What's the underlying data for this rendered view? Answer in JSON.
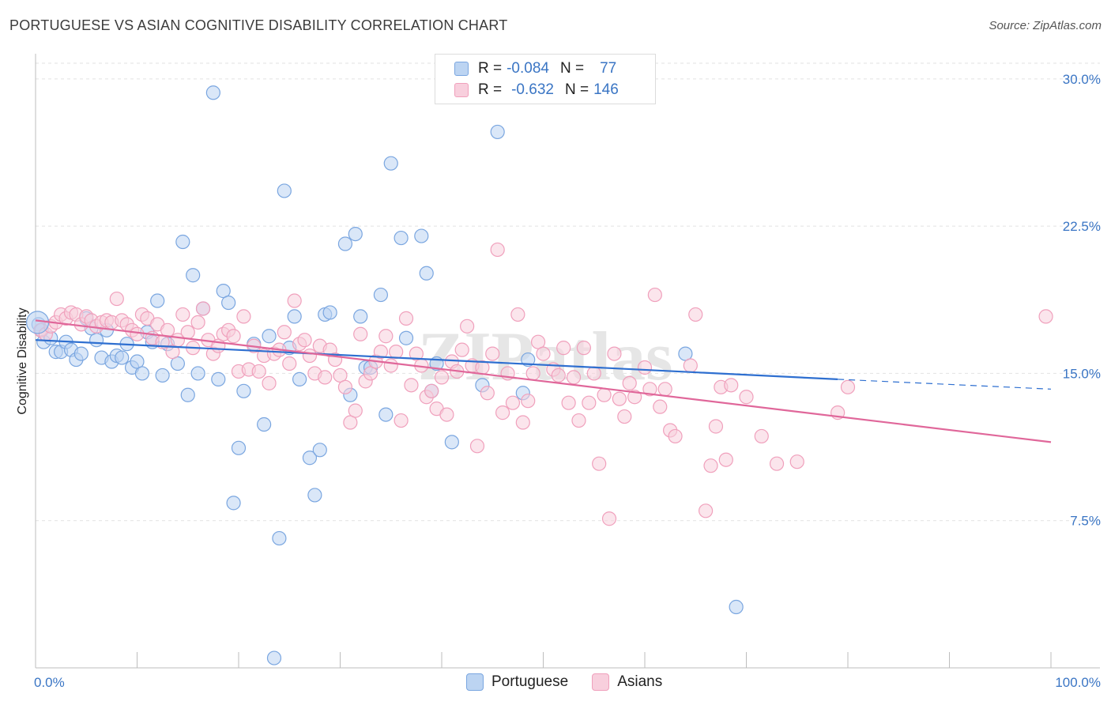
{
  "title": "PORTUGUESE VS ASIAN COGNITIVE DISABILITY CORRELATION CHART",
  "source": "Source: ZipAtlas.com",
  "watermark": "ZIPatlas",
  "chart_data": {
    "type": "scatter",
    "ylabel": "Cognitive Disability",
    "xlabel": "",
    "xlim": [
      0,
      100
    ],
    "ylim": [
      0,
      30.8
    ],
    "x_tick_labels": [
      "0.0%",
      "100.0%"
    ],
    "y_ticks": [
      {
        "value": 7.5,
        "label": "7.5%"
      },
      {
        "value": 15.0,
        "label": "15.0%"
      },
      {
        "value": 22.5,
        "label": "22.5%"
      },
      {
        "value": 30.0,
        "label": "30.0%"
      }
    ],
    "grid": true,
    "legend_position": "top-center",
    "series": [
      {
        "name": "Portuguese",
        "color": "#7aa6e0",
        "fill": "#bcd4f2",
        "line_color": "#2e6fd0",
        "R": "-0.084",
        "N": "77",
        "trend": {
          "x0": 0,
          "y0": 16.7,
          "x1": 79,
          "y1": 14.7,
          "dash_to": 100,
          "dash_y": 14.2
        },
        "points": [
          [
            0.3,
            17.5
          ],
          [
            0.6,
            17.2
          ],
          [
            0.8,
            16.6
          ],
          [
            1.5,
            16.8
          ],
          [
            2,
            16.1
          ],
          [
            2.5,
            16.1
          ],
          [
            3,
            16.6
          ],
          [
            3.5,
            16.2
          ],
          [
            4,
            15.7
          ],
          [
            4.5,
            16.0
          ],
          [
            5,
            17.8
          ],
          [
            5.5,
            17.3
          ],
          [
            6,
            16.7
          ],
          [
            6.5,
            15.8
          ],
          [
            7,
            17.2
          ],
          [
            7.5,
            15.6
          ],
          [
            8,
            15.9
          ],
          [
            8.5,
            15.8
          ],
          [
            9,
            16.5
          ],
          [
            9.5,
            15.3
          ],
          [
            10,
            15.6
          ],
          [
            10.5,
            15.0
          ],
          [
            11,
            17.1
          ],
          [
            11.5,
            16.6
          ],
          [
            12,
            18.7
          ],
          [
            12.5,
            14.9
          ],
          [
            13,
            16.5
          ],
          [
            14,
            15.5
          ],
          [
            14.5,
            21.7
          ],
          [
            15,
            13.9
          ],
          [
            15.5,
            20.0
          ],
          [
            16,
            15.0
          ],
          [
            16.5,
            18.3
          ],
          [
            17.5,
            29.3
          ],
          [
            18,
            14.7
          ],
          [
            18.5,
            19.2
          ],
          [
            19,
            18.6
          ],
          [
            19.5,
            8.4
          ],
          [
            20,
            11.2
          ],
          [
            20.5,
            14.1
          ],
          [
            21.5,
            16.5
          ],
          [
            22.5,
            12.4
          ],
          [
            23,
            16.9
          ],
          [
            23.5,
            0.5
          ],
          [
            24,
            6.6
          ],
          [
            24.5,
            24.3
          ],
          [
            25,
            16.3
          ],
          [
            25.5,
            17.9
          ],
          [
            26,
            14.7
          ],
          [
            27,
            10.7
          ],
          [
            27.5,
            8.8
          ],
          [
            28,
            11.1
          ],
          [
            28.5,
            18.0
          ],
          [
            29,
            18.1
          ],
          [
            30.5,
            21.6
          ],
          [
            31,
            13.9
          ],
          [
            31.5,
            22.1
          ],
          [
            32,
            17.9
          ],
          [
            32.5,
            15.3
          ],
          [
            33,
            15.3
          ],
          [
            34,
            19.0
          ],
          [
            34.5,
            12.9
          ],
          [
            35,
            25.7
          ],
          [
            36,
            21.9
          ],
          [
            36.5,
            16.8
          ],
          [
            38,
            22.0
          ],
          [
            38.5,
            20.1
          ],
          [
            39,
            14.1
          ],
          [
            39.5,
            15.5
          ],
          [
            41,
            11.5
          ],
          [
            44,
            14.4
          ],
          [
            45.5,
            27.3
          ],
          [
            48,
            14.0
          ],
          [
            48.5,
            15.7
          ],
          [
            64,
            16.0
          ],
          [
            69,
            3.1
          ]
        ]
      },
      {
        "name": "Asians",
        "color": "#f0a0bc",
        "fill": "#f8cfdd",
        "line_color": "#e0679a",
        "R": "-0.632",
        "N": "146",
        "trend": {
          "x0": 0,
          "y0": 17.7,
          "x1": 100,
          "y1": 11.5
        },
        "points": [
          [
            0.5,
            17.2
          ],
          [
            1,
            17.0
          ],
          [
            1.5,
            17.4
          ],
          [
            2,
            17.6
          ],
          [
            2.5,
            18.0
          ],
          [
            3,
            17.8
          ],
          [
            3.5,
            18.1
          ],
          [
            4,
            18.0
          ],
          [
            4.5,
            17.5
          ],
          [
            5,
            17.9
          ],
          [
            5.5,
            17.7
          ],
          [
            6,
            17.4
          ],
          [
            6.5,
            17.6
          ],
          [
            7,
            17.7
          ],
          [
            7.5,
            17.6
          ],
          [
            8,
            18.8
          ],
          [
            8.5,
            17.7
          ],
          [
            9,
            17.5
          ],
          [
            9.5,
            17.2
          ],
          [
            10,
            17.0
          ],
          [
            10.5,
            18.0
          ],
          [
            11,
            17.8
          ],
          [
            11.5,
            16.8
          ],
          [
            12,
            17.5
          ],
          [
            12.5,
            16.6
          ],
          [
            13,
            17.2
          ],
          [
            13.5,
            16.1
          ],
          [
            14,
            16.7
          ],
          [
            14.5,
            18.0
          ],
          [
            15,
            17.1
          ],
          [
            15.5,
            16.3
          ],
          [
            16,
            17.6
          ],
          [
            16.5,
            18.3
          ],
          [
            17,
            16.7
          ],
          [
            17.5,
            16.0
          ],
          [
            18,
            16.4
          ],
          [
            18.5,
            17.0
          ],
          [
            19,
            17.2
          ],
          [
            19.5,
            16.9
          ],
          [
            20,
            15.1
          ],
          [
            20.5,
            17.9
          ],
          [
            21,
            15.2
          ],
          [
            21.5,
            16.4
          ],
          [
            22,
            15.1
          ],
          [
            22.5,
            15.9
          ],
          [
            23,
            14.5
          ],
          [
            23.5,
            16.0
          ],
          [
            24,
            16.2
          ],
          [
            24.5,
            17.1
          ],
          [
            25,
            15.5
          ],
          [
            25.5,
            18.7
          ],
          [
            26,
            16.5
          ],
          [
            26.5,
            16.7
          ],
          [
            27,
            15.9
          ],
          [
            27.5,
            15.0
          ],
          [
            28,
            16.4
          ],
          [
            28.5,
            14.8
          ],
          [
            29,
            16.2
          ],
          [
            29.5,
            15.7
          ],
          [
            30,
            14.9
          ],
          [
            30.5,
            14.3
          ],
          [
            31,
            12.5
          ],
          [
            31.5,
            13.1
          ],
          [
            32,
            17.0
          ],
          [
            32.5,
            14.6
          ],
          [
            33,
            15.0
          ],
          [
            33.5,
            15.6
          ],
          [
            34,
            16.1
          ],
          [
            34.5,
            16.9
          ],
          [
            35,
            15.4
          ],
          [
            35.5,
            16.1
          ],
          [
            36,
            12.6
          ],
          [
            36.5,
            17.8
          ],
          [
            37,
            14.4
          ],
          [
            37.5,
            16.0
          ],
          [
            38,
            15.4
          ],
          [
            38.5,
            13.8
          ],
          [
            39,
            14.1
          ],
          [
            39.5,
            13.2
          ],
          [
            40,
            14.8
          ],
          [
            40.5,
            12.9
          ],
          [
            41,
            15.6
          ],
          [
            41.5,
            15.1
          ],
          [
            42,
            16.2
          ],
          [
            42.5,
            17.4
          ],
          [
            43,
            15.4
          ],
          [
            43.5,
            11.3
          ],
          [
            44,
            15.3
          ],
          [
            44.5,
            14.0
          ],
          [
            45,
            16.0
          ],
          [
            45.5,
            21.3
          ],
          [
            46,
            13.0
          ],
          [
            46.5,
            15.0
          ],
          [
            47,
            13.5
          ],
          [
            47.5,
            18.0
          ],
          [
            48,
            12.5
          ],
          [
            48.5,
            13.6
          ],
          [
            49,
            15.0
          ],
          [
            49.5,
            16.6
          ],
          [
            50,
            16.0
          ],
          [
            51,
            15.2
          ],
          [
            51.5,
            14.9
          ],
          [
            52,
            16.3
          ],
          [
            52.5,
            13.5
          ],
          [
            53,
            14.8
          ],
          [
            53.5,
            12.6
          ],
          [
            54,
            16.3
          ],
          [
            54.5,
            13.5
          ],
          [
            55,
            15.0
          ],
          [
            55.5,
            10.4
          ],
          [
            56,
            13.9
          ],
          [
            56.5,
            7.6
          ],
          [
            57,
            16.0
          ],
          [
            57.5,
            13.7
          ],
          [
            58,
            12.8
          ],
          [
            58.5,
            14.5
          ],
          [
            59,
            13.8
          ],
          [
            60,
            15.3
          ],
          [
            60.5,
            14.2
          ],
          [
            61,
            19.0
          ],
          [
            61.5,
            13.3
          ],
          [
            62,
            14.2
          ],
          [
            62.5,
            12.1
          ],
          [
            63,
            11.8
          ],
          [
            64.5,
            15.4
          ],
          [
            65,
            18.0
          ],
          [
            66,
            8.0
          ],
          [
            66.5,
            10.3
          ],
          [
            67,
            12.3
          ],
          [
            67.5,
            14.3
          ],
          [
            68,
            10.6
          ],
          [
            68.5,
            14.4
          ],
          [
            70,
            13.8
          ],
          [
            71.5,
            11.8
          ],
          [
            73,
            10.4
          ],
          [
            75,
            10.5
          ],
          [
            79,
            13.0
          ],
          [
            80,
            14.3
          ],
          [
            99.5,
            17.9
          ]
        ]
      }
    ]
  }
}
